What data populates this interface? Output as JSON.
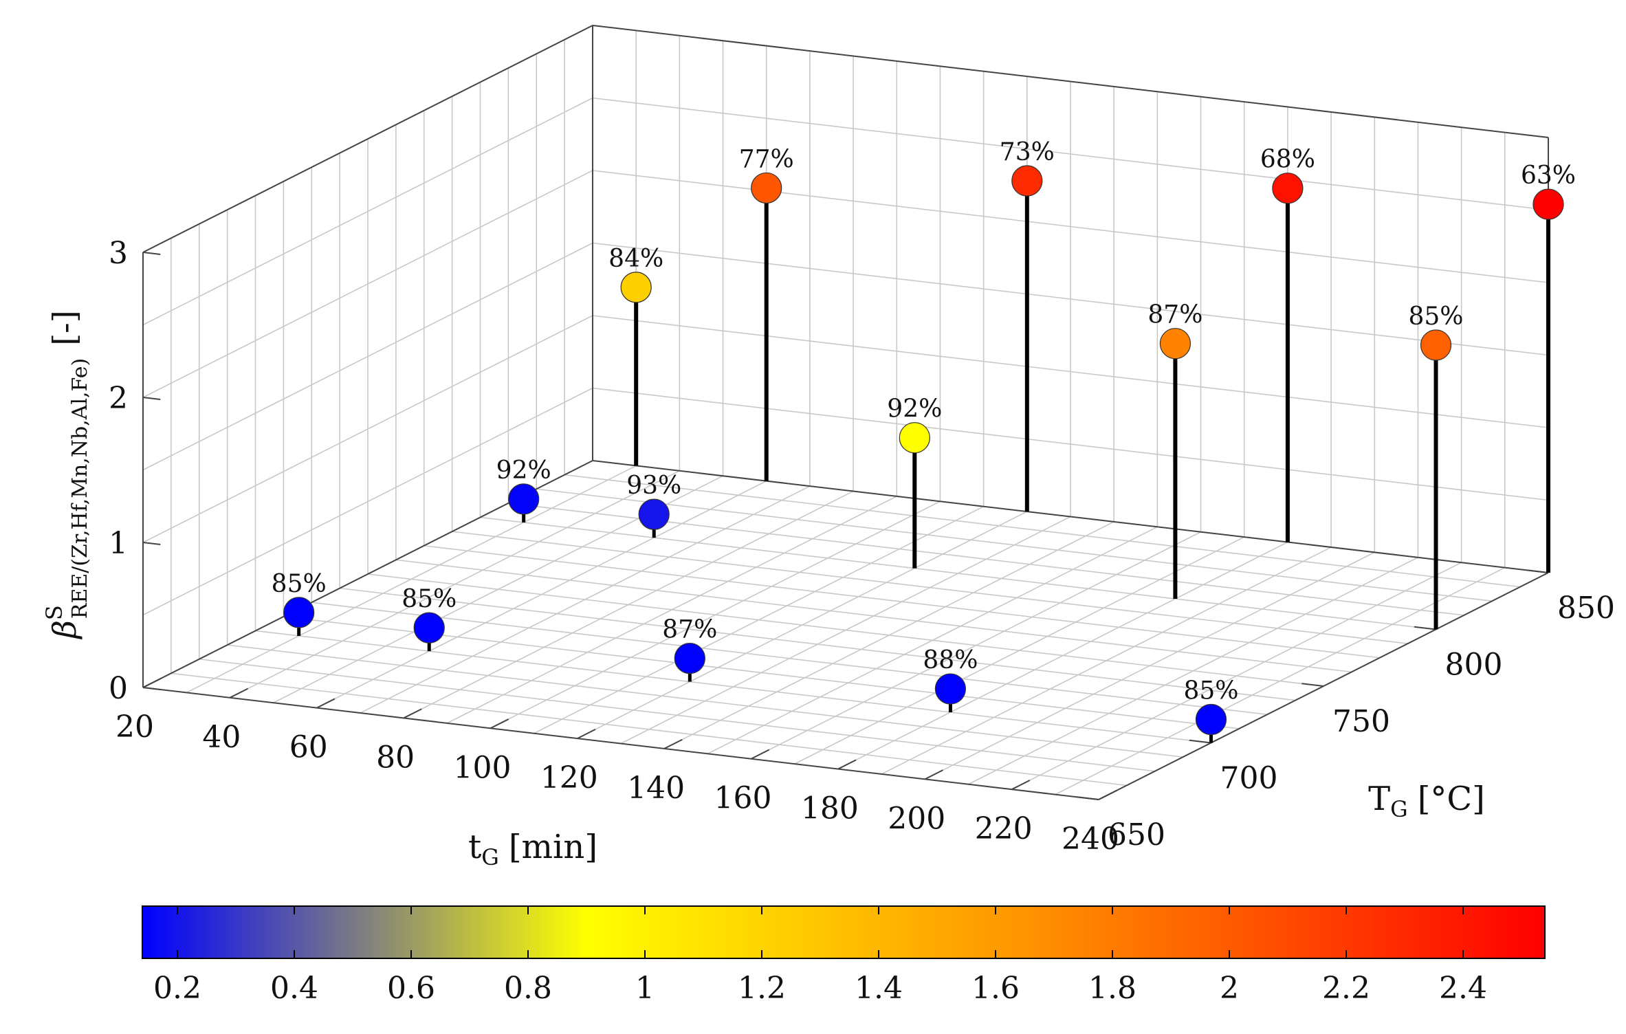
{
  "chart_data": {
    "type": "scatter",
    "variant": "3d-stem",
    "x_label": "t",
    "x_label_sub": "G",
    "x_label_unit": "[min]",
    "y_label": "T",
    "y_label_sub": "G",
    "y_label_unit": "[°C]",
    "z_label": "β",
    "z_label_sup": "S",
    "z_label_sub": "REE/(Zr,Hf,Mn,Nb,Al,Fe)",
    "z_label_unit": "[-]",
    "xlim": [
      20,
      240
    ],
    "ylim": [
      650,
      850
    ],
    "zlim": [
      0,
      3
    ],
    "x_ticks": [
      "20",
      "40",
      "60",
      "80",
      "100",
      "120",
      "140",
      "160",
      "180",
      "200",
      "220",
      "240"
    ],
    "y_ticks": [
      "650",
      "700",
      "750",
      "800",
      "850"
    ],
    "z_ticks": [
      "0",
      "1",
      "2",
      "3"
    ],
    "colorbar": {
      "min": 0.14,
      "max": 2.54,
      "ticks": [
        "0.2",
        "0.4",
        "0.6",
        "0.8",
        "1",
        "1.2",
        "1.4",
        "1.6",
        "1.8",
        "2",
        "2.2",
        "2.4"
      ],
      "stops": [
        {
          "v": 0.14,
          "color": "#0000ff"
        },
        {
          "v": 0.9,
          "color": "#ffff00"
        },
        {
          "v": 1.7,
          "color": "#ff8c00"
        },
        {
          "v": 2.54,
          "color": "#ff0000"
        }
      ]
    },
    "points": [
      {
        "t": 30,
        "T": 700,
        "z": 0.12,
        "label": "85%"
      },
      {
        "t": 60,
        "T": 700,
        "z": 0.12,
        "label": "85%"
      },
      {
        "t": 120,
        "T": 700,
        "z": 0.12,
        "label": "87%"
      },
      {
        "t": 180,
        "T": 700,
        "z": 0.12,
        "label": "88%"
      },
      {
        "t": 240,
        "T": 700,
        "z": 0.12,
        "label": "85%"
      },
      {
        "t": 30,
        "T": 800,
        "z": 0.15,
        "label": "92%"
      },
      {
        "t": 60,
        "T": 800,
        "z": 0.2,
        "label": "93%"
      },
      {
        "t": 120,
        "T": 800,
        "z": 0.9,
        "label": "92%"
      },
      {
        "t": 180,
        "T": 800,
        "z": 1.76,
        "label": "87%"
      },
      {
        "t": 240,
        "T": 800,
        "z": 1.96,
        "label": "85%"
      },
      {
        "t": 30,
        "T": 850,
        "z": 1.23,
        "label": "84%"
      },
      {
        "t": 60,
        "T": 850,
        "z": 2.02,
        "label": "77%"
      },
      {
        "t": 120,
        "T": 850,
        "z": 2.28,
        "label": "73%"
      },
      {
        "t": 180,
        "T": 850,
        "z": 2.44,
        "label": "68%"
      },
      {
        "t": 240,
        "T": 850,
        "z": 2.54,
        "label": "63%"
      }
    ]
  }
}
